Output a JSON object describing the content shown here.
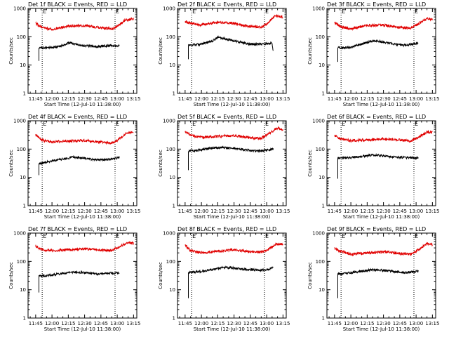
{
  "figure": {
    "xlabel": "Start Time (12-Jul-10 11:38:00)",
    "ylabel": "Counts/sec",
    "x_ticks": [
      "11:45",
      "12:00",
      "12:15",
      "12:30",
      "12:45",
      "13:00",
      "13:15"
    ],
    "y_ticks": [
      "1",
      "10",
      "100",
      "1000"
    ],
    "colors": {
      "events": "#000000",
      "lld": "#e00000",
      "axes": "#000000"
    }
  },
  "chart_data": [
    {
      "type": "line",
      "title": "Det 1f BLACK = Events, RED = LLD",
      "xlim": [
        "11:38",
        "13:18"
      ],
      "ylim": [
        1,
        1000
      ],
      "yscale": "log",
      "markers": [
        {
          "label": "E",
          "time": "11:51"
        },
        {
          "label": "E",
          "time": "12:58"
        }
      ],
      "series": [
        {
          "name": "Events",
          "color": "#000000",
          "start": "11:48",
          "end": "13:02",
          "points": [
            [
              "11:48",
              14
            ],
            [
              "11:48",
              40
            ],
            [
              "12:00",
              42
            ],
            [
              "12:10",
              48
            ],
            [
              "12:15",
              62
            ],
            [
              "12:20",
              55
            ],
            [
              "12:30",
              48
            ],
            [
              "12:40",
              45
            ],
            [
              "12:50",
              48
            ],
            [
              "13:02",
              48
            ]
          ]
        },
        {
          "name": "LLD",
          "color": "#e00000",
          "start": "11:45",
          "end": "13:15",
          "points": [
            [
              "11:45",
              300
            ],
            [
              "11:50",
              220
            ],
            [
              "12:00",
              180
            ],
            [
              "12:15",
              240
            ],
            [
              "12:30",
              250
            ],
            [
              "12:45",
              205
            ],
            [
              "12:55",
              190
            ],
            [
              "13:00",
              230
            ],
            [
              "13:08",
              400
            ],
            [
              "13:15",
              420
            ]
          ]
        }
      ]
    },
    {
      "type": "line",
      "title": "Det 2f BLACK = Events, RED = LLD",
      "xlim": [
        "11:38",
        "13:18"
      ],
      "ylim": [
        1,
        1000
      ],
      "yscale": "log",
      "markers": [
        {
          "label": "E",
          "time": "11:51"
        },
        {
          "label": "E",
          "time": "12:58"
        }
      ],
      "series": [
        {
          "name": "Events",
          "color": "#000000",
          "start": "11:48",
          "end": "13:06",
          "points": [
            [
              "11:48",
              16
            ],
            [
              "11:48",
              50
            ],
            [
              "12:00",
              55
            ],
            [
              "12:10",
              70
            ],
            [
              "12:15",
              95
            ],
            [
              "12:25",
              80
            ],
            [
              "12:35",
              65
            ],
            [
              "12:45",
              55
            ],
            [
              "12:55",
              55
            ],
            [
              "13:05",
              60
            ],
            [
              "13:06",
              30
            ]
          ]
        },
        {
          "name": "LLD",
          "color": "#e00000",
          "start": "11:45",
          "end": "13:15",
          "points": [
            [
              "11:45",
              350
            ],
            [
              "11:50",
              300
            ],
            [
              "12:00",
              260
            ],
            [
              "12:15",
              330
            ],
            [
              "12:30",
              300
            ],
            [
              "12:45",
              230
            ],
            [
              "12:55",
              220
            ],
            [
              "13:00",
              280
            ],
            [
              "13:08",
              550
            ],
            [
              "13:15",
              500
            ]
          ]
        }
      ]
    },
    {
      "type": "line",
      "title": "Det 3f BLACK = Events, RED = LLD",
      "xlim": [
        "11:38",
        "13:18"
      ],
      "ylim": [
        1,
        1000
      ],
      "yscale": "log",
      "markers": [
        {
          "label": "E",
          "time": "11:51"
        },
        {
          "label": "E",
          "time": "12:58"
        }
      ],
      "series": [
        {
          "name": "Events",
          "color": "#000000",
          "start": "11:48",
          "end": "13:02",
          "points": [
            [
              "11:48",
              13
            ],
            [
              "11:48",
              40
            ],
            [
              "12:00",
              42
            ],
            [
              "12:10",
              55
            ],
            [
              "12:20",
              72
            ],
            [
              "12:30",
              65
            ],
            [
              "12:40",
              55
            ],
            [
              "12:50",
              50
            ],
            [
              "13:02",
              60
            ]
          ]
        },
        {
          "name": "LLD",
          "color": "#e00000",
          "start": "11:45",
          "end": "13:15",
          "points": [
            [
              "11:45",
              330
            ],
            [
              "11:50",
              230
            ],
            [
              "12:00",
              190
            ],
            [
              "12:15",
              250
            ],
            [
              "12:30",
              260
            ],
            [
              "12:45",
              210
            ],
            [
              "12:55",
              200
            ],
            [
              "13:00",
              260
            ],
            [
              "13:10",
              430
            ],
            [
              "13:15",
              400
            ]
          ]
        }
      ]
    },
    {
      "type": "line",
      "title": "Det 4f BLACK = Events, RED = LLD",
      "xlim": [
        "11:38",
        "13:18"
      ],
      "ylim": [
        1,
        1000
      ],
      "yscale": "log",
      "markers": [
        {
          "label": "E",
          "time": "11:51"
        },
        {
          "label": "E",
          "time": "12:58"
        }
      ],
      "series": [
        {
          "name": "Events",
          "color": "#000000",
          "start": "11:48",
          "end": "13:02",
          "points": [
            [
              "11:48",
              12
            ],
            [
              "11:48",
              30
            ],
            [
              "12:00",
              38
            ],
            [
              "12:10",
              45
            ],
            [
              "12:20",
              52
            ],
            [
              "12:30",
              48
            ],
            [
              "12:40",
              42
            ],
            [
              "12:50",
              42
            ],
            [
              "13:02",
              50
            ]
          ]
        },
        {
          "name": "LLD",
          "color": "#e00000",
          "start": "11:45",
          "end": "13:15",
          "points": [
            [
              "11:45",
              320
            ],
            [
              "11:50",
              210
            ],
            [
              "12:00",
              180
            ],
            [
              "12:15",
              190
            ],
            [
              "12:30",
              200
            ],
            [
              "12:45",
              175
            ],
            [
              "12:55",
              165
            ],
            [
              "13:00",
              200
            ],
            [
              "13:08",
              360
            ],
            [
              "13:15",
              380
            ]
          ]
        }
      ]
    },
    {
      "type": "line",
      "title": "Det 5f BLACK = Events, RED = LLD",
      "xlim": [
        "11:38",
        "13:18"
      ],
      "ylim": [
        1,
        1000
      ],
      "yscale": "log",
      "markers": [
        {
          "label": "E",
          "time": "11:51"
        },
        {
          "label": "E",
          "time": "12:58"
        }
      ],
      "series": [
        {
          "name": "Events",
          "color": "#000000",
          "start": "11:48",
          "end": "13:06",
          "points": [
            [
              "11:48",
              18
            ],
            [
              "11:48",
              85
            ],
            [
              "12:00",
              95
            ],
            [
              "12:10",
              110
            ],
            [
              "12:20",
              115
            ],
            [
              "12:30",
              105
            ],
            [
              "12:40",
              95
            ],
            [
              "12:50",
              85
            ],
            [
              "13:00",
              90
            ],
            [
              "13:06",
              100
            ]
          ]
        },
        {
          "name": "LLD",
          "color": "#e00000",
          "start": "11:45",
          "end": "13:15",
          "points": [
            [
              "11:45",
              420
            ],
            [
              "11:50",
              310
            ],
            [
              "12:00",
              260
            ],
            [
              "12:15",
              280
            ],
            [
              "12:30",
              300
            ],
            [
              "12:45",
              250
            ],
            [
              "12:55",
              240
            ],
            [
              "13:00",
              320
            ],
            [
              "13:10",
              550
            ],
            [
              "13:15",
              480
            ]
          ]
        }
      ]
    },
    {
      "type": "line",
      "title": "Det 6f BLACK = Events, RED = LLD",
      "xlim": [
        "11:38",
        "13:18"
      ],
      "ylim": [
        1,
        1000
      ],
      "yscale": "log",
      "markers": [
        {
          "label": "E",
          "time": "11:51"
        },
        {
          "label": "E",
          "time": "12:58"
        }
      ],
      "series": [
        {
          "name": "Events",
          "color": "#000000",
          "start": "11:48",
          "end": "13:02",
          "points": [
            [
              "11:48",
              9
            ],
            [
              "11:48",
              48
            ],
            [
              "12:00",
              50
            ],
            [
              "12:10",
              55
            ],
            [
              "12:20",
              62
            ],
            [
              "12:30",
              58
            ],
            [
              "12:40",
              52
            ],
            [
              "12:50",
              50
            ],
            [
              "13:02",
              48
            ]
          ]
        },
        {
          "name": "LLD",
          "color": "#e00000",
          "start": "11:45",
          "end": "13:15",
          "points": [
            [
              "11:45",
              300
            ],
            [
              "11:50",
              230
            ],
            [
              "12:00",
              200
            ],
            [
              "12:15",
              210
            ],
            [
              "12:30",
              230
            ],
            [
              "12:45",
              210
            ],
            [
              "12:55",
              190
            ],
            [
              "13:00",
              230
            ],
            [
              "13:10",
              400
            ],
            [
              "13:15",
              380
            ]
          ]
        }
      ]
    },
    {
      "type": "line",
      "title": "Det 7f BLACK = Events, RED = LLD",
      "xlim": [
        "11:38",
        "13:18"
      ],
      "ylim": [
        1,
        1000
      ],
      "yscale": "log",
      "markers": [
        {
          "label": "E",
          "time": "11:51"
        },
        {
          "label": "E",
          "time": "12:58"
        }
      ],
      "series": [
        {
          "name": "Events",
          "color": "#000000",
          "start": "11:48",
          "end": "13:02",
          "points": [
            [
              "11:48",
              8
            ],
            [
              "11:48",
              30
            ],
            [
              "12:00",
              33
            ],
            [
              "12:10",
              38
            ],
            [
              "12:20",
              42
            ],
            [
              "12:30",
              40
            ],
            [
              "12:40",
              36
            ],
            [
              "12:50",
              38
            ],
            [
              "13:02",
              40
            ]
          ]
        },
        {
          "name": "LLD",
          "color": "#e00000",
          "start": "11:45",
          "end": "13:15",
          "points": [
            [
              "11:45",
              350
            ],
            [
              "11:50",
              260
            ],
            [
              "12:00",
              240
            ],
            [
              "12:15",
              260
            ],
            [
              "12:30",
              280
            ],
            [
              "12:45",
              250
            ],
            [
              "12:55",
              240
            ],
            [
              "13:00",
              300
            ],
            [
              "13:10",
              480
            ],
            [
              "13:15",
              430
            ]
          ]
        }
      ]
    },
    {
      "type": "line",
      "title": "Det 8f BLACK = Events, RED = LLD",
      "xlim": [
        "11:38",
        "13:18"
      ],
      "ylim": [
        1,
        1000
      ],
      "yscale": "log",
      "markers": [
        {
          "label": "E",
          "time": "11:51"
        },
        {
          "label": "E",
          "time": "12:58"
        }
      ],
      "series": [
        {
          "name": "Events",
          "color": "#000000",
          "start": "11:48",
          "end": "13:06",
          "points": [
            [
              "11:48",
              5
            ],
            [
              "11:48",
              40
            ],
            [
              "12:00",
              45
            ],
            [
              "12:10",
              52
            ],
            [
              "12:20",
              62
            ],
            [
              "12:30",
              58
            ],
            [
              "12:40",
              52
            ],
            [
              "12:50",
              50
            ],
            [
              "13:00",
              50
            ],
            [
              "13:06",
              60
            ]
          ]
        },
        {
          "name": "LLD",
          "color": "#e00000",
          "start": "11:45",
          "end": "13:15",
          "points": [
            [
              "11:45",
              380
            ],
            [
              "11:50",
              240
            ],
            [
              "12:00",
              200
            ],
            [
              "12:15",
              230
            ],
            [
              "12:30",
              260
            ],
            [
              "12:45",
              220
            ],
            [
              "12:55",
              210
            ],
            [
              "13:00",
              250
            ],
            [
              "13:10",
              420
            ],
            [
              "13:15",
              400
            ]
          ]
        }
      ]
    },
    {
      "type": "line",
      "title": "Det 9f BLACK = Events, RED = LLD",
      "xlim": [
        "11:38",
        "13:18"
      ],
      "ylim": [
        1,
        1000
      ],
      "yscale": "log",
      "markers": [
        {
          "label": "E",
          "time": "11:51"
        },
        {
          "label": "E",
          "time": "12:58"
        }
      ],
      "series": [
        {
          "name": "Events",
          "color": "#000000",
          "start": "11:48",
          "end": "13:02",
          "points": [
            [
              "11:48",
              5
            ],
            [
              "11:48",
              35
            ],
            [
              "12:00",
              40
            ],
            [
              "12:10",
              45
            ],
            [
              "12:20",
              52
            ],
            [
              "12:30",
              48
            ],
            [
              "12:40",
              44
            ],
            [
              "12:50",
              40
            ],
            [
              "13:02",
              45
            ]
          ]
        },
        {
          "name": "LLD",
          "color": "#e00000",
          "start": "11:45",
          "end": "13:15",
          "points": [
            [
              "11:45",
              300
            ],
            [
              "11:50",
              230
            ],
            [
              "12:00",
              180
            ],
            [
              "12:15",
              200
            ],
            [
              "12:30",
              220
            ],
            [
              "12:45",
              190
            ],
            [
              "12:55",
              180
            ],
            [
              "13:00",
              230
            ],
            [
              "13:10",
              420
            ],
            [
              "13:15",
              390
            ]
          ]
        }
      ]
    }
  ]
}
